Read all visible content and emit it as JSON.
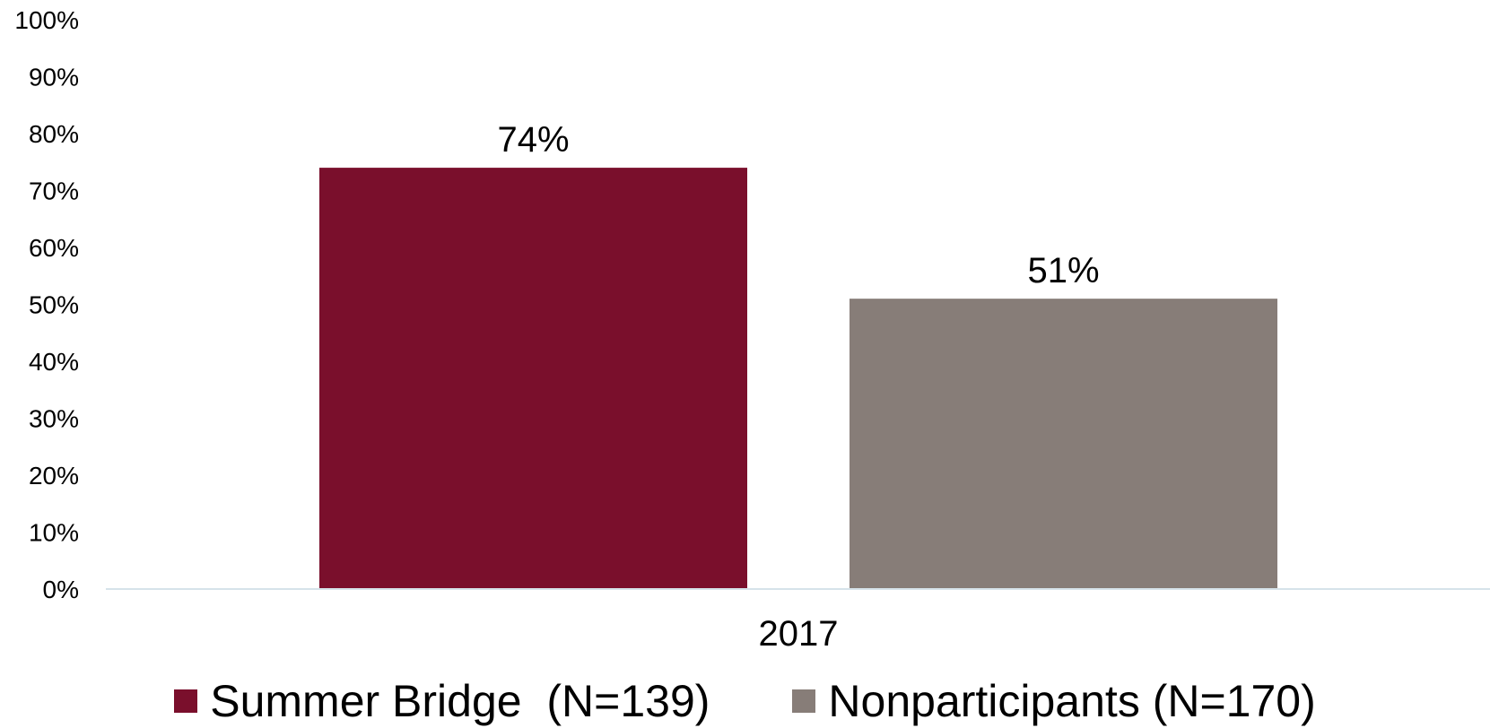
{
  "chart_data": {
    "type": "bar",
    "categories": [
      "2017"
    ],
    "series": [
      {
        "name": "Summer Bridge  (N=139)",
        "values": [
          74
        ],
        "color": "#7A0F2C",
        "label": "74%"
      },
      {
        "name": "Nonparticipants (N=170)",
        "values": [
          51
        ],
        "color": "#877D78",
        "label": "51%"
      }
    ],
    "title": "",
    "xlabel": "",
    "ylabel": "",
    "ylim": [
      0,
      100
    ],
    "yticks": [
      "0%",
      "10%",
      "20%",
      "30%",
      "40%",
      "50%",
      "60%",
      "70%",
      "80%",
      "90%",
      "100%"
    ],
    "grid": false,
    "legend_position": "bottom",
    "axis_color": "#D6E3EA"
  }
}
